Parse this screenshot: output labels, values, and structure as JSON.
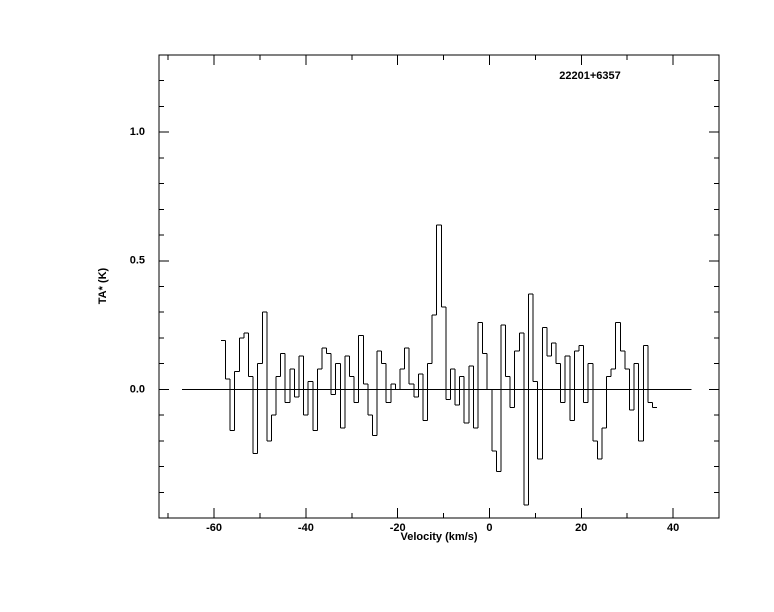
{
  "chart_data": {
    "type": "step",
    "annotation": "22201+6357",
    "xlabel": "Velocity (km/s)",
    "ylabel": "TA* (K)",
    "xlim": [
      -72,
      50
    ],
    "ylim": [
      -0.5,
      1.3
    ],
    "xticks": [
      -60,
      -40,
      -20,
      0,
      20,
      40
    ],
    "yticks": [
      {
        "value": 0,
        "label": "0.0"
      },
      0.5,
      {
        "value": 1,
        "label": "1.0"
      }
    ],
    "baseline": {
      "x": [
        -67,
        44
      ],
      "y": 0
    },
    "color": "#000000",
    "x": [
      -58,
      -57,
      -56,
      -55,
      -54,
      -53,
      -52,
      -51,
      -50,
      -49,
      -48,
      -47,
      -46,
      -45,
      -44,
      -43,
      -42,
      -41,
      -40,
      -39,
      -38,
      -37,
      -36,
      -35,
      -34,
      -33,
      -32,
      -31,
      -30,
      -29,
      -28,
      -27,
      -26,
      -25,
      -24,
      -23,
      -22,
      -21,
      -20,
      -19,
      -18,
      -17,
      -16,
      -15,
      -14,
      -13,
      -12,
      -11,
      -10,
      -9,
      -8,
      -7,
      -6,
      -5,
      -4,
      -3,
      -2,
      -1,
      0,
      1,
      2,
      3,
      4,
      5,
      6,
      7,
      8,
      9,
      10,
      11,
      12,
      13,
      14,
      15,
      16,
      17,
      18,
      19,
      20,
      21,
      22,
      23,
      24,
      25,
      26,
      27,
      28,
      29,
      30,
      31,
      32,
      33,
      34,
      35,
      36
    ],
    "values": [
      0.19,
      0.04,
      -0.16,
      0.07,
      0.2,
      0.22,
      0.05,
      -0.25,
      0.1,
      0.3,
      -0.2,
      -0.1,
      0.05,
      0.14,
      -0.05,
      0.08,
      -0.03,
      0.13,
      -0.1,
      0.03,
      -0.16,
      0.08,
      0.16,
      0.14,
      -0.02,
      0.1,
      -0.15,
      0.13,
      0.05,
      -0.05,
      0.21,
      0.02,
      -0.1,
      -0.18,
      0.15,
      0.1,
      -0.05,
      0.02,
      0,
      0.08,
      0.16,
      0.02,
      -0.03,
      0.06,
      -0.12,
      0.1,
      0.29,
      0.64,
      0.32,
      -0.04,
      0.08,
      -0.06,
      0.05,
      -0.13,
      0.09,
      -0.15,
      0.26,
      0.14,
      0,
      -0.24,
      -0.32,
      0.25,
      0.05,
      -0.07,
      0.15,
      0.22,
      -0.45,
      0.37,
      0.03,
      -0.27,
      0.24,
      0.13,
      0.18,
      0.1,
      -0.05,
      0.13,
      -0.12,
      0.15,
      0.17,
      -0.05,
      0.1,
      -0.2,
      -0.27,
      -0.15,
      0.05,
      0.08,
      0.26,
      0.15,
      0.08,
      -0.08,
      0.1,
      -0.2,
      0.17,
      -0.05,
      -0.07
    ]
  }
}
